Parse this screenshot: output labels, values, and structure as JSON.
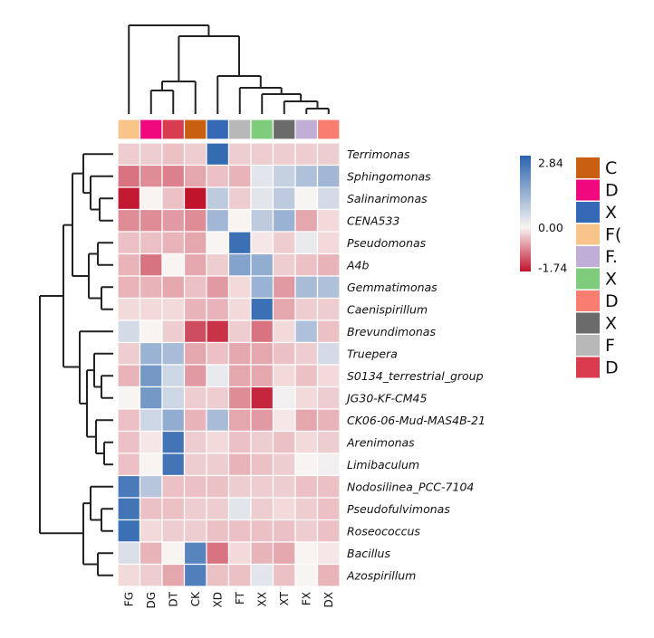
{
  "chart_data": {
    "type": "heatmap",
    "title": "",
    "columns": [
      "FG",
      "DG",
      "DT",
      "CK",
      "XD",
      "FT",
      "XX",
      "XT",
      "FX",
      "DX"
    ],
    "rows": [
      "Terrimonas",
      "Sphingomonas",
      "Salinarimonas",
      "CENA533",
      "Pseudomonas",
      "A4b",
      "Gemmatimonas",
      "Caenispirillum",
      "Brevundimonas",
      "Truepera",
      "S0134_terrestrial_group",
      "JG30-KF-CM45",
      "CK06-06-Mud-MAS4B-21",
      "Arenimonas",
      "Limibaculum",
      "Nodosilinea_PCC-7104",
      "Pseudofulvimonas",
      "Roseococcus",
      "Bacillus",
      "Azospirillum"
    ],
    "values": [
      [
        -0.3,
        -0.3,
        -0.4,
        -0.3,
        2.7,
        -0.3,
        -0.3,
        -0.3,
        -0.3,
        -0.3
      ],
      [
        -1.0,
        -0.8,
        -0.9,
        -0.6,
        -0.4,
        -0.5,
        0.3,
        0.7,
        1.0,
        1.2
      ],
      [
        -1.7,
        0.0,
        -0.4,
        -1.74,
        0.8,
        -0.3,
        0.3,
        0.8,
        0.0,
        0.5
      ],
      [
        -0.8,
        -0.8,
        -0.7,
        -0.8,
        1.2,
        0.0,
        0.8,
        1.3,
        -0.6,
        -0.2
      ],
      [
        -0.4,
        -0.4,
        -0.5,
        -0.6,
        0.0,
        2.6,
        -0.1,
        -0.3,
        0.2,
        -0.2
      ],
      [
        -0.5,
        -1.0,
        0.0,
        -0.6,
        -0.3,
        1.6,
        1.4,
        -0.3,
        -0.4,
        -0.5
      ],
      [
        -0.5,
        -0.5,
        -0.6,
        -0.4,
        -0.7,
        -0.2,
        1.3,
        -0.7,
        1.1,
        1.0
      ],
      [
        -0.2,
        -0.2,
        -0.2,
        -0.5,
        -0.5,
        -0.2,
        2.6,
        -0.6,
        -0.3,
        -0.3
      ],
      [
        0.5,
        0.0,
        -0.3,
        -1.3,
        -1.5,
        -0.3,
        -1.0,
        -0.2,
        1.0,
        -0.4
      ],
      [
        -0.3,
        1.3,
        1.1,
        -0.6,
        -0.4,
        -0.6,
        -0.6,
        -0.4,
        -0.3,
        0.5
      ],
      [
        -0.5,
        1.8,
        0.6,
        -0.7,
        0.2,
        -0.6,
        -0.6,
        -0.2,
        -0.4,
        -0.2
      ],
      [
        0.0,
        1.8,
        0.6,
        -0.3,
        -0.3,
        -0.8,
        -1.6,
        0.1,
        -0.2,
        -0.3
      ],
      [
        -0.4,
        0.6,
        1.4,
        -0.5,
        1.1,
        -0.6,
        -0.7,
        -0.1,
        -0.6,
        -0.5
      ],
      [
        -0.4,
        -0.1,
        2.5,
        -0.3,
        -0.2,
        -0.4,
        -0.3,
        -0.4,
        -0.2,
        -0.3
      ],
      [
        -0.4,
        0.0,
        2.5,
        -0.3,
        -0.3,
        -0.5,
        -0.4,
        -0.3,
        0.0,
        0.1
      ],
      [
        2.4,
        0.9,
        -0.4,
        -0.4,
        -0.4,
        -0.3,
        -0.3,
        -0.3,
        -0.4,
        -0.4
      ],
      [
        2.5,
        -0.4,
        -0.4,
        -0.3,
        -0.3,
        0.3,
        -0.3,
        -0.2,
        -0.3,
        -0.4
      ],
      [
        2.6,
        -0.2,
        -0.3,
        -0.3,
        -0.4,
        -0.4,
        -0.4,
        -0.4,
        -0.3,
        -0.4
      ],
      [
        0.4,
        -0.5,
        0.0,
        2.2,
        -1.0,
        -0.2,
        -0.5,
        -0.6,
        0.0,
        -0.1
      ],
      [
        -0.2,
        -0.3,
        -0.6,
        2.3,
        -0.4,
        -0.4,
        0.3,
        -0.4,
        0.0,
        -0.5
      ]
    ],
    "colorscale": {
      "min": -1.74,
      "mid": 0.0,
      "max": 2.84,
      "low_color": "#c0142d",
      "mid_color": "#f8f4f2",
      "high_color": "#2a64ae",
      "tick_labels": [
        "2.84",
        "0.00",
        "-1.74"
      ]
    },
    "column_annotation_colors": [
      "#f9c48a",
      "#f0087e",
      "#d93c4e",
      "#c95f10",
      "#3569b5",
      "#b8b8b8",
      "#7fcc7c",
      "#6b6b6b",
      "#c1aed6",
      "#f77e70"
    ],
    "legend": {
      "placement": "right",
      "entries": [
        {
          "label": "C",
          "color": "#c95f10"
        },
        {
          "label": "D",
          "color": "#f0087e"
        },
        {
          "label": "X",
          "color": "#3569b5"
        },
        {
          "label": "F(",
          "color": "#f9c48a"
        },
        {
          "label": "F.",
          "color": "#c1aed6"
        },
        {
          "label": "X",
          "color": "#7fcc7c"
        },
        {
          "label": "D",
          "color": "#f77e70"
        },
        {
          "label": "X",
          "color": "#6b6b6b"
        },
        {
          "label": "F",
          "color": "#b8b8b8"
        },
        {
          "label": "D",
          "color": "#d93c4e"
        }
      ]
    },
    "grid": true,
    "row_dendrogram": true,
    "column_dendrogram": true
  }
}
